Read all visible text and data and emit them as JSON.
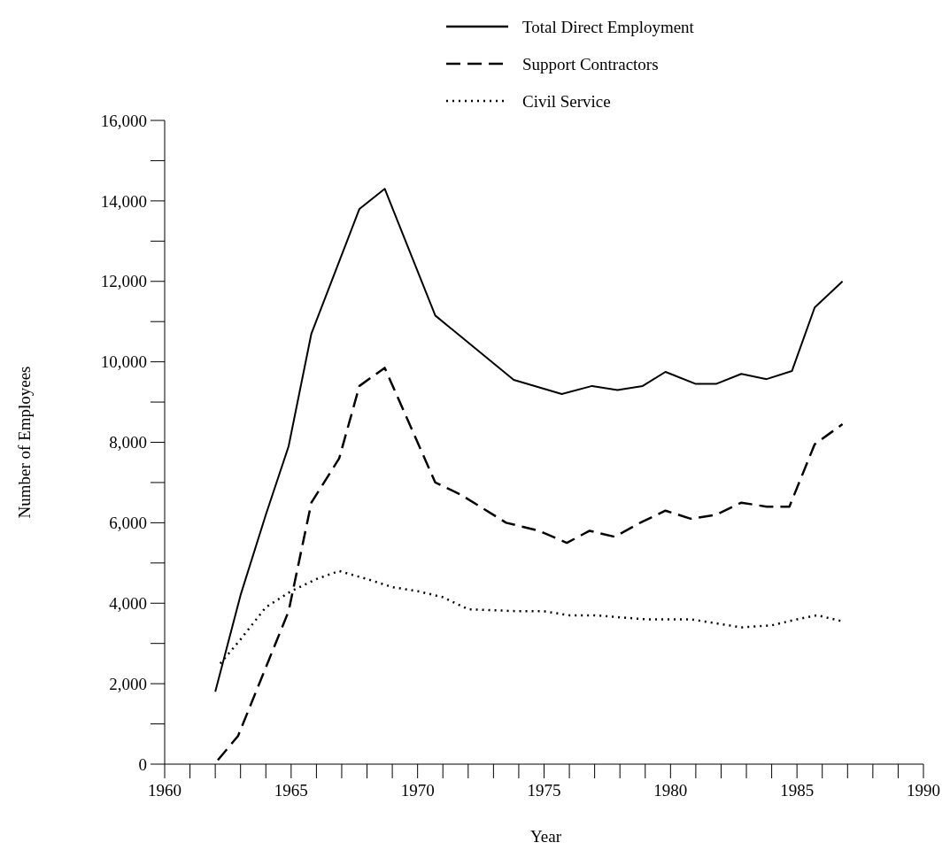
{
  "chart_data": {
    "type": "line",
    "xlabel": "Year",
    "ylabel": "Number of Employees",
    "legend": "top",
    "grid": false,
    "marker": "none",
    "xlim": [
      1960,
      1990
    ],
    "ylim": [
      0,
      16000
    ],
    "xticks": [
      1960,
      {
        "value": 1961,
        "label": null
      },
      {
        "value": 1962,
        "label": null
      },
      {
        "value": 1963,
        "label": null
      },
      {
        "value": 1964,
        "label": null
      },
      1965,
      {
        "value": 1966,
        "label": null
      },
      {
        "value": 1967,
        "label": null
      },
      {
        "value": 1968,
        "label": null
      },
      {
        "value": 1969,
        "label": null
      },
      1970,
      {
        "value": 1971,
        "label": null
      },
      {
        "value": 1972,
        "label": null
      },
      {
        "value": 1973,
        "label": null
      },
      {
        "value": 1974,
        "label": null
      },
      1975,
      {
        "value": 1976,
        "label": null
      },
      {
        "value": 1977,
        "label": null
      },
      {
        "value": 1978,
        "label": null
      },
      {
        "value": 1979,
        "label": null
      },
      1980,
      {
        "value": 1981,
        "label": null
      },
      {
        "value": 1982,
        "label": null
      },
      {
        "value": 1983,
        "label": null
      },
      {
        "value": 1984,
        "label": null
      },
      1985,
      {
        "value": 1986,
        "label": null
      },
      {
        "value": 1987,
        "label": null
      },
      {
        "value": 1988,
        "label": null
      },
      {
        "value": 1989,
        "label": null
      },
      1990
    ],
    "yticks": [
      {
        "value": 0,
        "label": "0"
      },
      {
        "value": 1000,
        "label": null
      },
      {
        "value": 2000,
        "label": "2,000"
      },
      {
        "value": 3000,
        "label": null
      },
      {
        "value": 4000,
        "label": "4,000"
      },
      {
        "value": 5000,
        "label": null
      },
      {
        "value": 6000,
        "label": "6,000"
      },
      {
        "value": 7000,
        "label": null
      },
      {
        "value": 8000,
        "label": "8,000"
      },
      {
        "value": 9000,
        "label": null
      },
      {
        "value": 10000,
        "label": "10,000"
      },
      {
        "value": 11000,
        "label": null
      },
      {
        "value": 12000,
        "label": "12,000"
      },
      {
        "value": 13000,
        "label": null
      },
      {
        "value": 14000,
        "label": "14,000"
      },
      {
        "value": 15000,
        "label": null
      },
      {
        "value": 16000,
        "label": "16,000"
      }
    ],
    "series": [
      {
        "name": "Total Direct Employment",
        "color": "#000000",
        "line_style": "solid",
        "x": [
          1962,
          1963,
          1964,
          1964.9,
          1965.8,
          1967.7,
          1968.7,
          1970.7,
          1973.8,
          1975.7,
          1976.9,
          1977.9,
          1978.9,
          1979.8,
          1981,
          1981.8,
          1982.8,
          1983.8,
          1984.8,
          1985.7,
          1986.8
        ],
        "values": [
          1800,
          4200,
          6200,
          7900,
          10700,
          13800,
          14300,
          11150,
          9550,
          9200,
          9400,
          9300,
          9400,
          9750,
          9450,
          9450,
          9700,
          9570,
          9770,
          11350,
          12000
        ]
      },
      {
        "name": "Support Contractors",
        "color": "#000000",
        "line_style": "dashed",
        "x": [
          1962.1,
          1962.9,
          1964.9,
          1965.8,
          1966.9,
          1967.7,
          1968.7,
          1970.7,
          1971.7,
          1973.5,
          1974.8,
          1975.9,
          1976.8,
          1977.8,
          1978.8,
          1979.8,
          1980.8,
          1981.8,
          1982.8,
          1983.8,
          1984.7,
          1985.7,
          1986.8
        ],
        "values": [
          100,
          700,
          3800,
          6500,
          7600,
          9400,
          9850,
          7000,
          6700,
          6000,
          5800,
          5500,
          5800,
          5650,
          6000,
          6300,
          6100,
          6200,
          6500,
          6400,
          6400,
          7950,
          8450
        ]
      },
      {
        "name": "Civil Service",
        "color": "#000000",
        "line_style": "dotted",
        "x": [
          1962.2,
          1963,
          1964,
          1965,
          1966,
          1966.9,
          1968,
          1969,
          1970,
          1971,
          1972,
          1974,
          1975,
          1976,
          1977,
          1978,
          1979,
          1980.8,
          1982.8,
          1984,
          1985,
          1985.8,
          1986.8
        ],
        "values": [
          2500,
          3100,
          3900,
          4300,
          4600,
          4800,
          4600,
          4400,
          4300,
          4150,
          3850,
          3800,
          3800,
          3700,
          3700,
          3650,
          3600,
          3600,
          3400,
          3450,
          3600,
          3700,
          3550
        ]
      }
    ]
  }
}
